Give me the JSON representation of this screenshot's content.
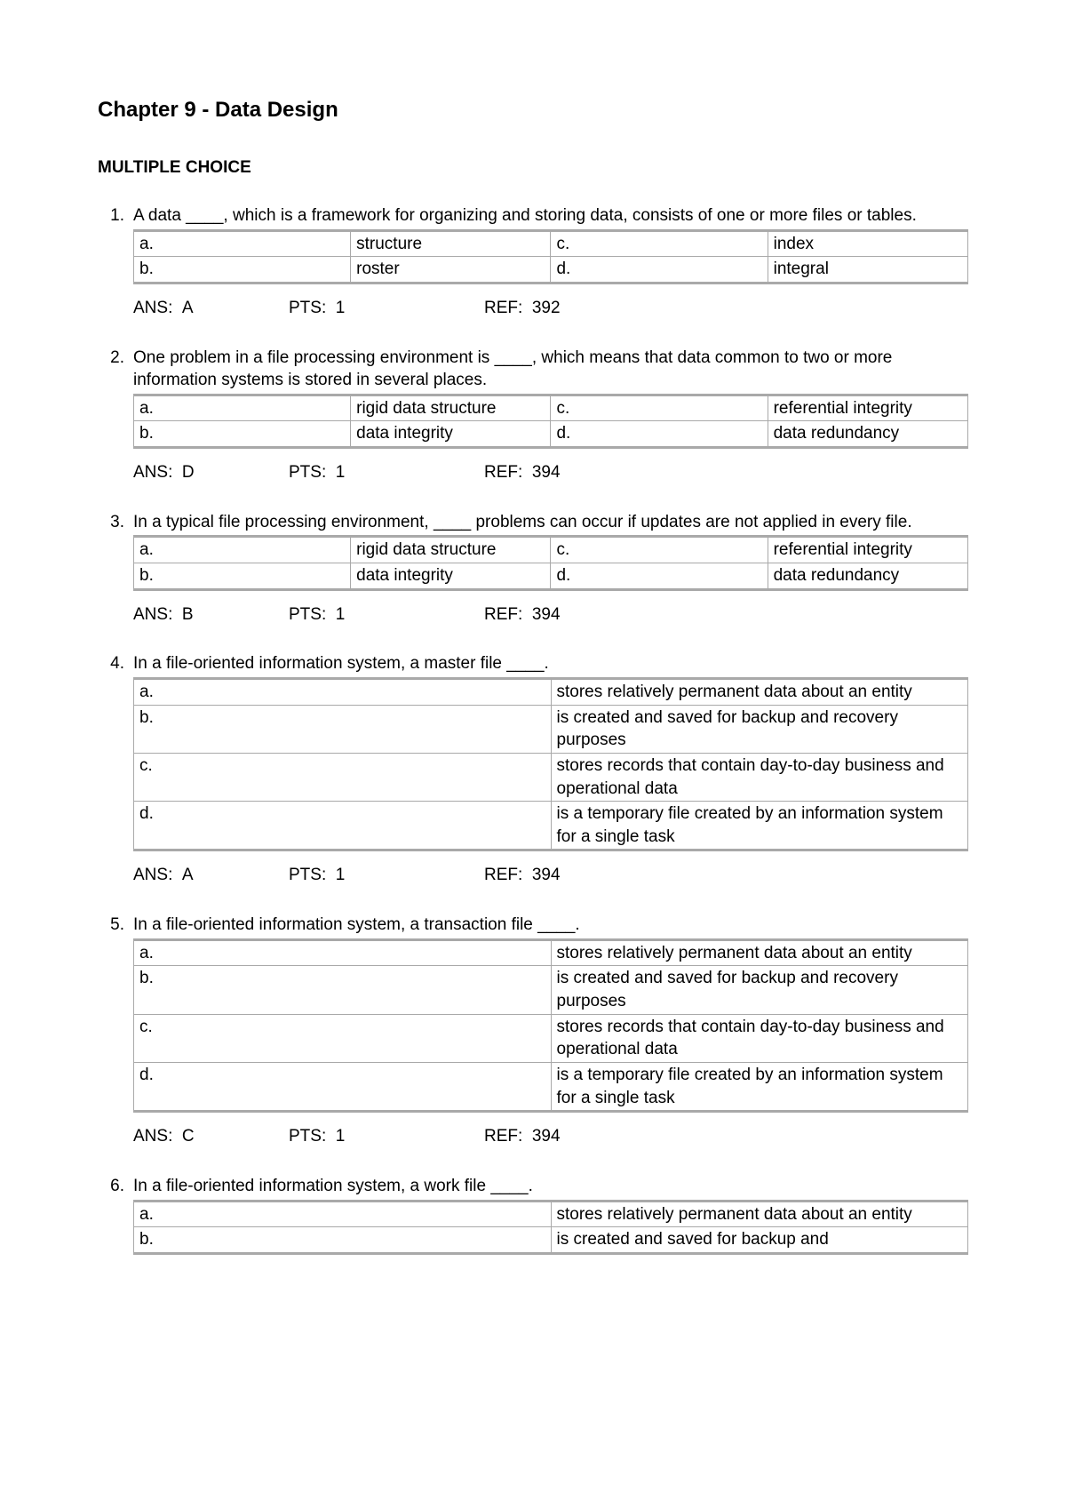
{
  "chapter_title": "Chapter 9 - Data Design",
  "section_title": "MULTIPLE CHOICE",
  "meta_labels": {
    "ans": "ANS:",
    "pts": "PTS:",
    "ref": "REF:"
  },
  "questions": [
    {
      "num": "1.",
      "text": "A data ____, which is a framework for organizing and storing data, consists of one or more files or tables.",
      "layout": "four-col",
      "rows": [
        [
          {
            "l": "a.",
            "v": "structure"
          },
          {
            "l": "c.",
            "v": "index"
          }
        ],
        [
          {
            "l": "b.",
            "v": "roster"
          },
          {
            "l": "d.",
            "v": "integral"
          }
        ]
      ],
      "ans": "A",
      "pts": "1",
      "ref": "392"
    },
    {
      "num": "2.",
      "text": "One problem in a file processing environment is ____, which means that data common to two or more information systems is stored in several places.",
      "layout": "four-col",
      "rows": [
        [
          {
            "l": "a.",
            "v": "rigid data structure"
          },
          {
            "l": "c.",
            "v": "referential integrity"
          }
        ],
        [
          {
            "l": "b.",
            "v": "data integrity"
          },
          {
            "l": "d.",
            "v": "data redundancy"
          }
        ]
      ],
      "ans": "D",
      "pts": "1",
      "ref": "394"
    },
    {
      "num": "3.",
      "text": "In a typical file processing environment, ____ problems can occur if updates are not applied in every file.",
      "layout": "four-col",
      "rows": [
        [
          {
            "l": "a.",
            "v": "rigid data structure"
          },
          {
            "l": "c.",
            "v": "referential integrity"
          }
        ],
        [
          {
            "l": "b.",
            "v": "data integrity"
          },
          {
            "l": "d.",
            "v": "data redundancy"
          }
        ]
      ],
      "ans": "B",
      "pts": "1",
      "ref": "394"
    },
    {
      "num": "4.",
      "text": "In a file-oriented information system, a master file ____.",
      "layout": "two-col",
      "rows": [
        [
          {
            "l": "a.",
            "v": "stores relatively permanent data about an entity"
          }
        ],
        [
          {
            "l": "b.",
            "v": "is created and saved for backup and recovery purposes"
          }
        ],
        [
          {
            "l": "c.",
            "v": "stores records that contain day-to-day business and operational data"
          }
        ],
        [
          {
            "l": "d.",
            "v": "is a temporary file created by an information system for a single task"
          }
        ]
      ],
      "ans": "A",
      "pts": "1",
      "ref": "394"
    },
    {
      "num": "5.",
      "text": "In a file-oriented information system, a transaction file ____.",
      "layout": "two-col",
      "rows": [
        [
          {
            "l": "a.",
            "v": "stores relatively permanent data about an entity"
          }
        ],
        [
          {
            "l": "b.",
            "v": "is created and saved for backup and recovery purposes"
          }
        ],
        [
          {
            "l": "c.",
            "v": "stores records that contain day-to-day business and operational data"
          }
        ],
        [
          {
            "l": "d.",
            "v": "is a temporary file created by an information system for a single task"
          }
        ]
      ],
      "ans": "C",
      "pts": "1",
      "ref": "394"
    },
    {
      "num": "6.",
      "text": "In a file-oriented information system, a work file ____.",
      "layout": "two-col",
      "rows": [
        [
          {
            "l": "a.",
            "v": "stores relatively permanent data about an entity"
          }
        ],
        [
          {
            "l": "b.",
            "v": "is created and saved for backup and"
          }
        ]
      ],
      "ans": null,
      "pts": null,
      "ref": null
    }
  ]
}
